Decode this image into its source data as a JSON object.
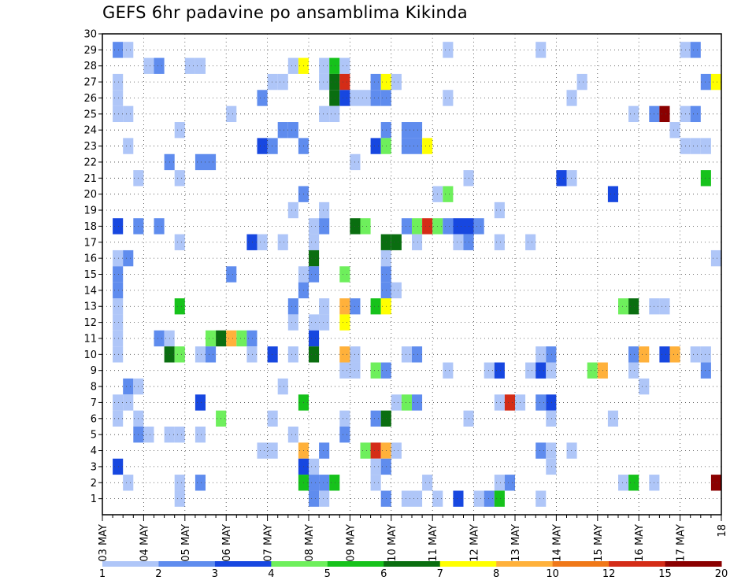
{
  "title": "GEFS 6hr padavine po ansamblima Kikinda",
  "chart_data": {
    "type": "heatmap",
    "title": "GEFS 6hr padavine po ansamblima Kikinda",
    "xlabel": "",
    "ylabel": "",
    "x_ticks": [
      "03 MAY",
      "04 MAY",
      "05 MAY",
      "06 MAY",
      "07 MAY",
      "08 MAY",
      "09 MAY",
      "10 MAY",
      "11 MAY",
      "12 MAY",
      "13 MAY",
      "14 MAY",
      "15 MAY",
      "16 MAY",
      "17 MAY",
      "18"
    ],
    "y_ticks": [
      1,
      2,
      3,
      4,
      5,
      6,
      7,
      8,
      9,
      10,
      11,
      12,
      13,
      14,
      15,
      16,
      17,
      18,
      19,
      20,
      21,
      22,
      23,
      24,
      25,
      26,
      27,
      28,
      29,
      30
    ],
    "x_range": [
      "03 MAY 00z",
      "18 MAY 00z"
    ],
    "x_step": "6hr",
    "y_range": [
      0,
      30
    ],
    "grid": true,
    "colorbar": {
      "labels": [
        "1",
        "2",
        "3",
        "4",
        "5",
        "6",
        "7",
        "8",
        "10",
        "12",
        "15",
        "20"
      ],
      "colors": [
        "#afc6f8",
        "#5f8cee",
        "#1747e0",
        "#6eef5c",
        "#16c21b",
        "#0a6e10",
        "#ffff00",
        "#ffb13b",
        "#f07818",
        "#d42c17",
        "#8b0000"
      ]
    },
    "cells_note": "each cell: [member, 6-hour step index from 03 MAY 00z, color level 1-11]",
    "cells": [
      [
        30,
        5,
        1
      ],
      [
        30,
        48,
        3
      ],
      [
        29,
        1,
        2
      ],
      [
        29,
        2,
        1
      ],
      [
        29,
        33,
        1
      ],
      [
        29,
        42,
        1
      ],
      [
        29,
        56,
        1
      ],
      [
        29,
        57,
        2
      ],
      [
        28,
        4,
        1
      ],
      [
        28,
        5,
        2
      ],
      [
        28,
        8,
        1
      ],
      [
        28,
        9,
        1
      ],
      [
        28,
        18,
        1
      ],
      [
        28,
        19,
        7
      ],
      [
        28,
        21,
        1
      ],
      [
        28,
        22,
        5
      ],
      [
        28,
        23,
        1
      ],
      [
        27,
        1,
        1
      ],
      [
        27,
        16,
        1
      ],
      [
        27,
        17,
        1
      ],
      [
        27,
        21,
        1
      ],
      [
        27,
        22,
        6
      ],
      [
        27,
        23,
        10
      ],
      [
        27,
        26,
        2
      ],
      [
        27,
        27,
        7
      ],
      [
        27,
        28,
        1
      ],
      [
        27,
        46,
        1
      ],
      [
        27,
        58,
        2
      ],
      [
        27,
        59,
        7
      ],
      [
        26,
        1,
        1
      ],
      [
        26,
        15,
        2
      ],
      [
        26,
        22,
        6
      ],
      [
        26,
        23,
        3
      ],
      [
        26,
        24,
        1
      ],
      [
        26,
        25,
        1
      ],
      [
        26,
        26,
        2
      ],
      [
        26,
        27,
        2
      ],
      [
        26,
        33,
        1
      ],
      [
        26,
        45,
        1
      ],
      [
        25,
        1,
        1
      ],
      [
        25,
        2,
        1
      ],
      [
        25,
        12,
        1
      ],
      [
        25,
        21,
        1
      ],
      [
        25,
        22,
        1
      ],
      [
        25,
        51,
        1
      ],
      [
        25,
        53,
        2
      ],
      [
        25,
        54,
        11
      ],
      [
        25,
        56,
        1
      ],
      [
        25,
        57,
        2
      ],
      [
        24,
        7,
        1
      ],
      [
        24,
        17,
        2
      ],
      [
        24,
        18,
        2
      ],
      [
        24,
        27,
        2
      ],
      [
        24,
        29,
        2
      ],
      [
        24,
        30,
        2
      ],
      [
        24,
        55,
        1
      ],
      [
        23,
        2,
        1
      ],
      [
        23,
        15,
        3
      ],
      [
        23,
        16,
        2
      ],
      [
        23,
        19,
        2
      ],
      [
        23,
        26,
        3
      ],
      [
        23,
        27,
        4
      ],
      [
        23,
        29,
        2
      ],
      [
        23,
        30,
        2
      ],
      [
        23,
        31,
        7
      ],
      [
        23,
        56,
        1
      ],
      [
        23,
        57,
        1
      ],
      [
        23,
        58,
        1
      ],
      [
        22,
        6,
        2
      ],
      [
        22,
        9,
        2
      ],
      [
        22,
        10,
        2
      ],
      [
        22,
        24,
        1
      ],
      [
        21,
        3,
        1
      ],
      [
        21,
        7,
        1
      ],
      [
        21,
        35,
        1
      ],
      [
        21,
        44,
        3
      ],
      [
        21,
        45,
        1
      ],
      [
        21,
        58,
        5
      ],
      [
        20,
        19,
        2
      ],
      [
        20,
        32,
        1
      ],
      [
        20,
        33,
        4
      ],
      [
        20,
        49,
        3
      ],
      [
        19,
        18,
        1
      ],
      [
        19,
        21,
        1
      ],
      [
        19,
        38,
        1
      ],
      [
        18,
        1,
        3
      ],
      [
        18,
        3,
        2
      ],
      [
        18,
        5,
        2
      ],
      [
        18,
        20,
        1
      ],
      [
        18,
        21,
        2
      ],
      [
        18,
        24,
        6
      ],
      [
        18,
        25,
        4
      ],
      [
        18,
        29,
        2
      ],
      [
        18,
        30,
        4
      ],
      [
        18,
        31,
        10
      ],
      [
        18,
        32,
        4
      ],
      [
        18,
        33,
        2
      ],
      [
        18,
        34,
        3
      ],
      [
        18,
        35,
        3
      ],
      [
        18,
        36,
        2
      ],
      [
        17,
        7,
        1
      ],
      [
        17,
        14,
        3
      ],
      [
        17,
        15,
        1
      ],
      [
        17,
        17,
        1
      ],
      [
        17,
        20,
        1
      ],
      [
        17,
        27,
        6
      ],
      [
        17,
        28,
        6
      ],
      [
        17,
        30,
        1
      ],
      [
        17,
        34,
        1
      ],
      [
        17,
        35,
        2
      ],
      [
        17,
        38,
        1
      ],
      [
        17,
        41,
        1
      ],
      [
        16,
        1,
        1
      ],
      [
        16,
        2,
        2
      ],
      [
        16,
        20,
        6
      ],
      [
        16,
        27,
        1
      ],
      [
        16,
        59,
        1
      ],
      [
        15,
        1,
        2
      ],
      [
        15,
        12,
        2
      ],
      [
        15,
        19,
        1
      ],
      [
        15,
        20,
        2
      ],
      [
        15,
        23,
        4
      ],
      [
        15,
        27,
        2
      ],
      [
        14,
        1,
        2
      ],
      [
        14,
        19,
        2
      ],
      [
        14,
        27,
        2
      ],
      [
        14,
        28,
        1
      ],
      [
        13,
        1,
        1
      ],
      [
        13,
        7,
        5
      ],
      [
        13,
        18,
        2
      ],
      [
        13,
        21,
        1
      ],
      [
        13,
        23,
        8
      ],
      [
        13,
        24,
        2
      ],
      [
        13,
        26,
        5
      ],
      [
        13,
        27,
        7
      ],
      [
        13,
        50,
        4
      ],
      [
        13,
        51,
        6
      ],
      [
        13,
        53,
        1
      ],
      [
        13,
        54,
        1
      ],
      [
        12,
        1,
        1
      ],
      [
        12,
        18,
        1
      ],
      [
        12,
        20,
        1
      ],
      [
        12,
        21,
        1
      ],
      [
        12,
        23,
        7
      ],
      [
        11,
        1,
        1
      ],
      [
        11,
        5,
        2
      ],
      [
        11,
        6,
        1
      ],
      [
        11,
        10,
        4
      ],
      [
        11,
        11,
        6
      ],
      [
        11,
        12,
        8
      ],
      [
        11,
        13,
        4
      ],
      [
        11,
        14,
        2
      ],
      [
        11,
        20,
        3
      ],
      [
        10,
        1,
        1
      ],
      [
        10,
        6,
        6
      ],
      [
        10,
        7,
        4
      ],
      [
        10,
        9,
        1
      ],
      [
        10,
        10,
        2
      ],
      [
        10,
        14,
        1
      ],
      [
        10,
        16,
        3
      ],
      [
        10,
        18,
        1
      ],
      [
        10,
        20,
        6
      ],
      [
        10,
        23,
        8
      ],
      [
        10,
        24,
        1
      ],
      [
        10,
        29,
        1
      ],
      [
        10,
        30,
        2
      ],
      [
        10,
        42,
        1
      ],
      [
        10,
        43,
        2
      ],
      [
        10,
        51,
        2
      ],
      [
        10,
        52,
        8
      ],
      [
        10,
        54,
        3
      ],
      [
        10,
        55,
        8
      ],
      [
        10,
        57,
        1
      ],
      [
        10,
        58,
        1
      ],
      [
        9,
        23,
        1
      ],
      [
        9,
        24,
        1
      ],
      [
        9,
        26,
        4
      ],
      [
        9,
        27,
        2
      ],
      [
        9,
        33,
        1
      ],
      [
        9,
        37,
        1
      ],
      [
        9,
        38,
        3
      ],
      [
        9,
        41,
        1
      ],
      [
        9,
        42,
        3
      ],
      [
        9,
        43,
        1
      ],
      [
        9,
        47,
        4
      ],
      [
        9,
        48,
        8
      ],
      [
        9,
        51,
        1
      ],
      [
        9,
        58,
        2
      ],
      [
        8,
        2,
        2
      ],
      [
        8,
        3,
        1
      ],
      [
        8,
        17,
        1
      ],
      [
        8,
        52,
        1
      ],
      [
        7,
        1,
        1
      ],
      [
        7,
        2,
        1
      ],
      [
        7,
        9,
        3
      ],
      [
        7,
        19,
        5
      ],
      [
        7,
        28,
        1
      ],
      [
        7,
        29,
        4
      ],
      [
        7,
        30,
        2
      ],
      [
        7,
        38,
        1
      ],
      [
        7,
        39,
        10
      ],
      [
        7,
        40,
        1
      ],
      [
        7,
        42,
        2
      ],
      [
        7,
        43,
        3
      ],
      [
        6,
        1,
        1
      ],
      [
        6,
        3,
        1
      ],
      [
        6,
        11,
        4
      ],
      [
        6,
        16,
        1
      ],
      [
        6,
        23,
        1
      ],
      [
        6,
        26,
        2
      ],
      [
        6,
        27,
        6
      ],
      [
        6,
        35,
        1
      ],
      [
        6,
        43,
        1
      ],
      [
        6,
        49,
        1
      ],
      [
        5,
        3,
        2
      ],
      [
        5,
        4,
        1
      ],
      [
        5,
        6,
        1
      ],
      [
        5,
        7,
        1
      ],
      [
        5,
        9,
        1
      ],
      [
        5,
        18,
        1
      ],
      [
        5,
        23,
        2
      ],
      [
        4,
        15,
        1
      ],
      [
        4,
        16,
        1
      ],
      [
        4,
        19,
        8
      ],
      [
        4,
        21,
        2
      ],
      [
        4,
        25,
        4
      ],
      [
        4,
        26,
        10
      ],
      [
        4,
        27,
        8
      ],
      [
        4,
        28,
        1
      ],
      [
        4,
        42,
        2
      ],
      [
        4,
        43,
        1
      ],
      [
        4,
        45,
        1
      ],
      [
        3,
        1,
        3
      ],
      [
        3,
        19,
        3
      ],
      [
        3,
        20,
        1
      ],
      [
        3,
        26,
        1
      ],
      [
        3,
        27,
        2
      ],
      [
        3,
        43,
        1
      ],
      [
        2,
        2,
        1
      ],
      [
        2,
        7,
        1
      ],
      [
        2,
        9,
        2
      ],
      [
        2,
        19,
        5
      ],
      [
        2,
        20,
        2
      ],
      [
        2,
        21,
        2
      ],
      [
        2,
        22,
        5
      ],
      [
        2,
        26,
        1
      ],
      [
        2,
        31,
        1
      ],
      [
        2,
        38,
        1
      ],
      [
        2,
        39,
        2
      ],
      [
        2,
        50,
        1
      ],
      [
        2,
        51,
        5
      ],
      [
        2,
        53,
        1
      ],
      [
        2,
        59,
        11
      ],
      [
        1,
        7,
        1
      ],
      [
        1,
        20,
        2
      ],
      [
        1,
        21,
        1
      ],
      [
        1,
        27,
        2
      ],
      [
        1,
        29,
        1
      ],
      [
        1,
        30,
        1
      ],
      [
        1,
        32,
        1
      ],
      [
        1,
        34,
        3
      ],
      [
        1,
        36,
        1
      ],
      [
        1,
        37,
        2
      ],
      [
        1,
        38,
        5
      ],
      [
        1,
        42,
        1
      ],
      [
        0,
        19,
        1
      ],
      [
        0,
        21,
        6
      ],
      [
        0,
        22,
        5
      ],
      [
        0,
        57,
        1
      ]
    ]
  }
}
